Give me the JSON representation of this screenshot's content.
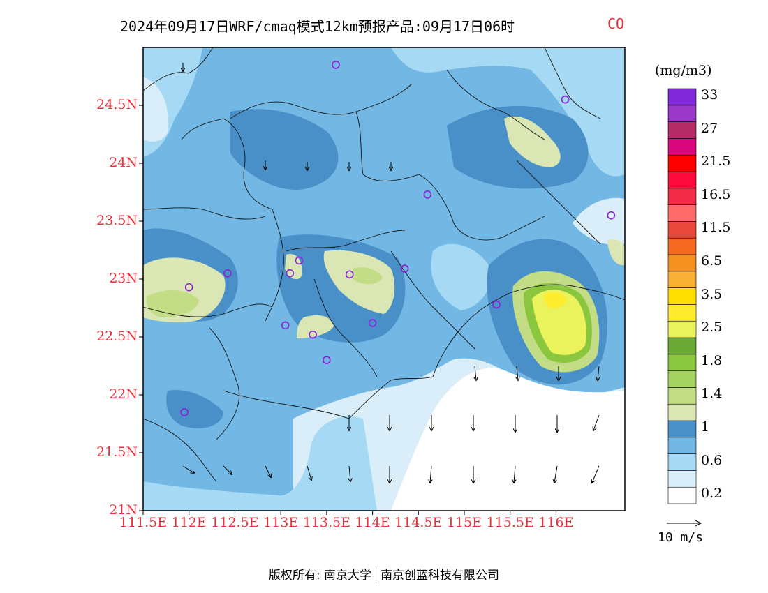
{
  "title": {
    "main": "2024年09月17日WRF/cmaq模式12km预报产品:09月17日06时",
    "species": "CO"
  },
  "map": {
    "lat_ticks": [
      "24.5N",
      "24N",
      "23.5N",
      "23N",
      "22.5N",
      "22N",
      "21.5N",
      "21N"
    ],
    "lon_ticks": [
      "111.5E",
      "112E",
      "112.5E",
      "113E",
      "113.5E",
      "114E",
      "114.5E",
      "115E",
      "115.5E",
      "116E"
    ],
    "lat_values": [
      24.5,
      24.0,
      23.5,
      23.0,
      22.5,
      22.0,
      21.5,
      21.0
    ],
    "lon_values": [
      111.5,
      112.0,
      112.5,
      113.0,
      113.5,
      114.0,
      114.5,
      115.0,
      115.5,
      116.0
    ],
    "lon_range": [
      111.5,
      116.75
    ],
    "lat_range": [
      21.0,
      25.0
    ],
    "station_markers": [
      {
        "lon": 111.95,
        "lat": 21.85
      },
      {
        "lon": 112.0,
        "lat": 22.93
      },
      {
        "lon": 112.42,
        "lat": 23.05
      },
      {
        "lon": 113.05,
        "lat": 22.6
      },
      {
        "lon": 113.1,
        "lat": 23.05
      },
      {
        "lon": 113.2,
        "lat": 23.16
      },
      {
        "lon": 113.35,
        "lat": 22.52
      },
      {
        "lon": 113.5,
        "lat": 22.3
      },
      {
        "lon": 113.6,
        "lat": 24.85
      },
      {
        "lon": 113.75,
        "lat": 23.04
      },
      {
        "lon": 114.0,
        "lat": 22.62
      },
      {
        "lon": 114.35,
        "lat": 23.09
      },
      {
        "lon": 114.6,
        "lat": 23.73
      },
      {
        "lon": 115.35,
        "lat": 22.78
      },
      {
        "lon": 116.1,
        "lat": 24.55
      },
      {
        "lon": 116.6,
        "lat": 23.55
      }
    ]
  },
  "legend": {
    "unit": "(mg/m3)",
    "colors": [
      "#ffffff",
      "#daeef9",
      "#a6daf4",
      "#73b8e4",
      "#4a90c8",
      "#dbe6b5",
      "#c2dd85",
      "#a5d260",
      "#8bc63f",
      "#6aa934",
      "#eaf25c",
      "#ffec2f",
      "#ffdf00",
      "#f8b134",
      "#f5911e",
      "#f56a21",
      "#e9463c",
      "#ff6b6b",
      "#f32b49",
      "#ff0a3c",
      "#ff0000",
      "#d9077c",
      "#b32b64",
      "#9a38c8",
      "#7f28d8"
    ],
    "labels": [
      "0.2",
      "0.6",
      "1",
      "1.4",
      "1.8",
      "2.5",
      "3.5",
      "6.5",
      "11.5",
      "16.5",
      "21.5",
      "27",
      "33"
    ]
  },
  "wind_reference": "10 m/s",
  "footer": {
    "left": "版权所有: 南京大学",
    "right": "南京创蓝科技有限公司"
  }
}
